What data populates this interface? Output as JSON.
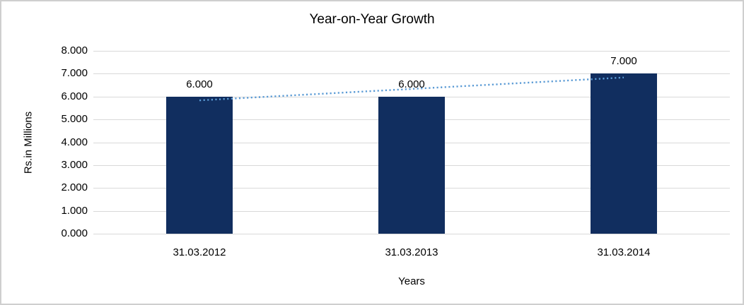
{
  "chart_data": {
    "type": "bar",
    "title": "Year-on-Year Growth",
    "xlabel": "Years",
    "ylabel": "Rs.in Millions",
    "categories": [
      "31.03.2012",
      "31.03.2013",
      "31.03.2014"
    ],
    "series": [
      {
        "name": "Rs.in Millions",
        "values": [
          6000,
          6000,
          7000
        ],
        "value_labels": [
          "6.000",
          "6.000",
          "7.000"
        ]
      }
    ],
    "ylim": [
      0,
      8000
    ],
    "yticks": [
      {
        "value": 0,
        "label": "0.000"
      },
      {
        "value": 1000,
        "label": "1.000"
      },
      {
        "value": 2000,
        "label": "2.000"
      },
      {
        "value": 3000,
        "label": "3.000"
      },
      {
        "value": 4000,
        "label": "4.000"
      },
      {
        "value": 5000,
        "label": "5.000"
      },
      {
        "value": 6000,
        "label": "6.000"
      },
      {
        "value": 7000,
        "label": "7.000"
      },
      {
        "value": 8000,
        "label": "8.000"
      }
    ],
    "grid": true,
    "legend_position": "none",
    "colors": {
      "bar": "#112e5f",
      "trendline": "#5b9bd5",
      "gridline": "#d9d9d9",
      "text": "#000000"
    },
    "trendline": {
      "type": "linear",
      "style": "dotted"
    }
  }
}
